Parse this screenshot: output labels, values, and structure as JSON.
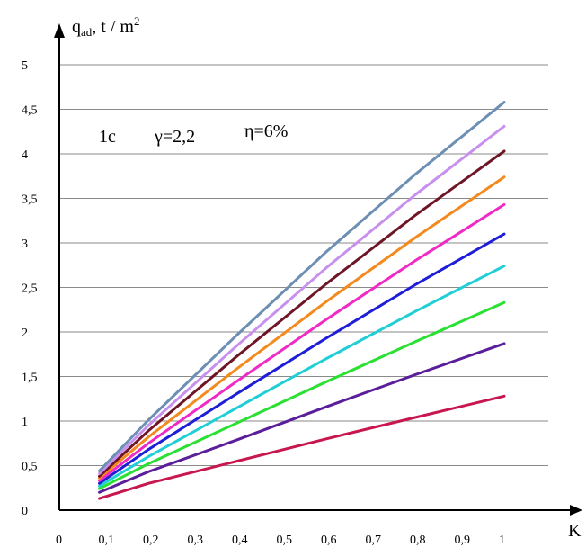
{
  "chart_data": {
    "type": "line",
    "title": "",
    "ylabel": "q",
    "ylabel_sub": "ad",
    "ylabel_unit": ", t / m",
    "ylabel_sup": "2",
    "xlabel": "K",
    "annotations": [
      "1c",
      "γ=2,2",
      "η=6%"
    ],
    "xlim": [
      0,
      1
    ],
    "ylim": [
      0,
      5
    ],
    "grid": true,
    "legend": "none",
    "x_ticks": [
      {
        "v": 0,
        "label": "0"
      },
      {
        "v": 0.1,
        "label": "0,1"
      },
      {
        "v": 0.2,
        "label": "0,2"
      },
      {
        "v": 0.3,
        "label": "0,3"
      },
      {
        "v": 0.4,
        "label": "0,4"
      },
      {
        "v": 0.5,
        "label": "0,5"
      },
      {
        "v": 0.6,
        "label": "0,6"
      },
      {
        "v": 0.7,
        "label": "0,7"
      },
      {
        "v": 0.8,
        "label": "0,8"
      },
      {
        "v": 0.9,
        "label": "0,9"
      },
      {
        "v": 1,
        "label": "1"
      }
    ],
    "y_ticks": [
      {
        "v": 0,
        "label": "0"
      },
      {
        "v": 0.5,
        "label": "0,5"
      },
      {
        "v": 1,
        "label": "1"
      },
      {
        "v": 1.5,
        "label": "1,5"
      },
      {
        "v": 2,
        "label": "2"
      },
      {
        "v": 2.5,
        "label": "2,5"
      },
      {
        "v": 3,
        "label": "3"
      },
      {
        "v": 3.5,
        "label": "3,5"
      },
      {
        "v": 4,
        "label": "4"
      },
      {
        "v": 4.5,
        "label": "4,5"
      },
      {
        "v": 5,
        "label": "5"
      }
    ],
    "series": [
      {
        "color": "#c8164f",
        "points": [
          [
            0.09,
            0.13
          ],
          [
            0.2,
            0.3
          ],
          [
            0.4,
            0.55
          ],
          [
            0.6,
            0.8
          ],
          [
            0.8,
            1.04
          ],
          [
            1.0,
            1.28
          ]
        ]
      },
      {
        "color": "#5b1e9a",
        "points": [
          [
            0.09,
            0.2
          ],
          [
            0.2,
            0.43
          ],
          [
            0.4,
            0.79
          ],
          [
            0.6,
            1.16
          ],
          [
            0.8,
            1.52
          ],
          [
            1.0,
            1.87
          ]
        ]
      },
      {
        "color": "#2ae032",
        "points": [
          [
            0.09,
            0.24
          ],
          [
            0.2,
            0.52
          ],
          [
            0.4,
            0.98
          ],
          [
            0.6,
            1.44
          ],
          [
            0.8,
            1.89
          ],
          [
            1.0,
            2.33
          ]
        ]
      },
      {
        "color": "#20cfd6",
        "points": [
          [
            0.09,
            0.27
          ],
          [
            0.2,
            0.6
          ],
          [
            0.4,
            1.15
          ],
          [
            0.6,
            1.7
          ],
          [
            0.8,
            2.23
          ],
          [
            1.0,
            2.74
          ]
        ]
      },
      {
        "color": "#1e1ed8",
        "points": [
          [
            0.09,
            0.3
          ],
          [
            0.2,
            0.68
          ],
          [
            0.4,
            1.31
          ],
          [
            0.6,
            1.93
          ],
          [
            0.8,
            2.53
          ],
          [
            1.0,
            3.1
          ]
        ]
      },
      {
        "color": "#f02ac4",
        "points": [
          [
            0.09,
            0.33
          ],
          [
            0.2,
            0.75
          ],
          [
            0.4,
            1.45
          ],
          [
            0.6,
            2.14
          ],
          [
            0.8,
            2.8
          ],
          [
            1.0,
            3.43
          ]
        ]
      },
      {
        "color": "#f48a1e",
        "points": [
          [
            0.09,
            0.36
          ],
          [
            0.2,
            0.82
          ],
          [
            0.4,
            1.59
          ],
          [
            0.6,
            2.34
          ],
          [
            0.8,
            3.06
          ],
          [
            1.0,
            3.74
          ]
        ]
      },
      {
        "color": "#6e1626",
        "points": [
          [
            0.09,
            0.38
          ],
          [
            0.2,
            0.89
          ],
          [
            0.4,
            1.73
          ],
          [
            0.6,
            2.54
          ],
          [
            0.8,
            3.31
          ],
          [
            1.0,
            4.03
          ]
        ]
      },
      {
        "color": "#c890ee",
        "points": [
          [
            0.09,
            0.41
          ],
          [
            0.2,
            0.95
          ],
          [
            0.4,
            1.85
          ],
          [
            0.6,
            2.72
          ],
          [
            0.8,
            3.54
          ],
          [
            1.0,
            4.31
          ]
        ]
      },
      {
        "color": "#6d8fb4",
        "points": [
          [
            0.09,
            0.44
          ],
          [
            0.2,
            1.01
          ],
          [
            0.4,
            1.97
          ],
          [
            0.6,
            2.9
          ],
          [
            0.8,
            3.77
          ],
          [
            1.0,
            4.58
          ]
        ]
      }
    ]
  }
}
